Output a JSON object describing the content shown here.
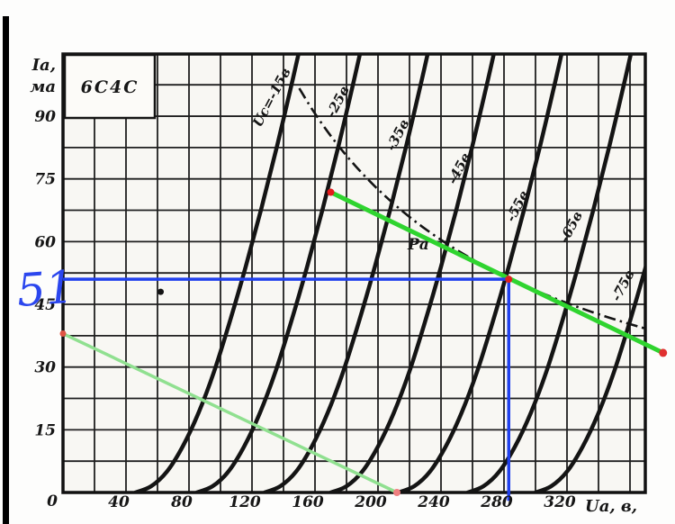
{
  "chart_data": {
    "type": "line",
    "title": "6С4С",
    "description": "Anode characteristics of 6С4С triode with load lines and operating point",
    "ylabel_line1": "Iа,",
    "ylabel_line2": "ма",
    "xlabel": "Uа, в,",
    "origin_label": "0",
    "x_ticks": [
      0,
      40,
      80,
      120,
      160,
      200,
      240,
      280,
      320
    ],
    "y_ticks": [
      0,
      15,
      30,
      45,
      60,
      75,
      90
    ],
    "x_range": [
      0,
      370
    ],
    "y_range": [
      0,
      105
    ],
    "grid_step_x": 20,
    "grid_step_y": 7.5,
    "grid_on": true,
    "curve_shape_delta_ua_vs_ia": [
      [
        0,
        0
      ],
      [
        10,
        1.5
      ],
      [
        20,
        5
      ],
      [
        30,
        11
      ],
      [
        40,
        19
      ],
      [
        50,
        29
      ],
      [
        60,
        41
      ],
      [
        70,
        54
      ],
      [
        80,
        68
      ],
      [
        90,
        83
      ],
      [
        100,
        99
      ],
      [
        106,
        109
      ]
    ],
    "curves": [
      {
        "label": "Uс=-15в",
        "grid_voltage_v": -15,
        "ua_offset": 46,
        "label_at": {
          "ua": 135,
          "ia": 94
        }
      },
      {
        "label": "-25в",
        "grid_voltage_v": -25,
        "ua_offset": 85,
        "label_at": {
          "ua": 177,
          "ia": 93
        }
      },
      {
        "label": "-35в",
        "grid_voltage_v": -35,
        "ua_offset": 128,
        "label_at": {
          "ua": 215,
          "ia": 85
        }
      },
      {
        "label": "-45в",
        "grid_voltage_v": -45,
        "ua_offset": 170,
        "label_at": {
          "ua": 254,
          "ia": 77
        }
      },
      {
        "label": "-55в",
        "grid_voltage_v": -55,
        "ua_offset": 213,
        "label_at": {
          "ua": 291,
          "ia": 68
        }
      },
      {
        "label": "-65в",
        "grid_voltage_v": -65,
        "ua_offset": 257,
        "label_at": {
          "ua": 325,
          "ia": 63
        }
      },
      {
        "label": "-75в",
        "grid_voltage_v": -75,
        "ua_offset": 300,
        "label_at": {
          "ua": 358,
          "ia": 49
        }
      }
    ],
    "power_hyperbola": {
      "label": "Pа",
      "pa_ma_x_v": 14500,
      "ua_start": 150,
      "ua_end": 372,
      "label_at": {
        "ua": 220,
        "ia": 60
      }
    },
    "load_lines": [
      {
        "name": "main-load-line",
        "color": "#2fd42f",
        "width": 5,
        "points": [
          [
            170,
            71.8
          ],
          [
            381,
            33.4
          ]
        ]
      },
      {
        "name": "light-load-line",
        "color": "#90e090",
        "width": 3.5,
        "points": [
          [
            0,
            38
          ],
          [
            212,
            0
          ]
        ]
      }
    ],
    "guide_lines": {
      "color": "#2040ee",
      "width": 3.5,
      "horizontal": {
        "ia": 51,
        "ua_from": 0,
        "ua_to": 283
      },
      "vertical": {
        "ua": 283,
        "ia_from": 51,
        "ia_to": -2
      }
    },
    "operating_point": {
      "ua": 283,
      "ia": 51
    },
    "annotation_51": "51",
    "markers": {
      "red_dots": [
        {
          "ua": 170,
          "ia": 71.8,
          "r": 4,
          "color": "#e51c1c"
        },
        {
          "ua": 283,
          "ia": 51,
          "r": 4,
          "color": "#de2020"
        },
        {
          "ua": 381,
          "ia": 33.4,
          "r": 4.5,
          "color": "#e03030"
        },
        {
          "ua": 0,
          "ia": 38,
          "r": 3.5,
          "color": "#e05545"
        },
        {
          "ua": 212,
          "ia": 0,
          "r": 4,
          "color": "#ef8080"
        }
      ],
      "black_dot": {
        "ua": 62,
        "ia": 48,
        "r": 3.5
      }
    },
    "colors": {
      "curve": "#141414",
      "grid": "#1f1f1f",
      "border": "#111111",
      "paper": "#f8f7f3",
      "dashdot": "#141414",
      "handwriting": "#2b46ee"
    }
  }
}
